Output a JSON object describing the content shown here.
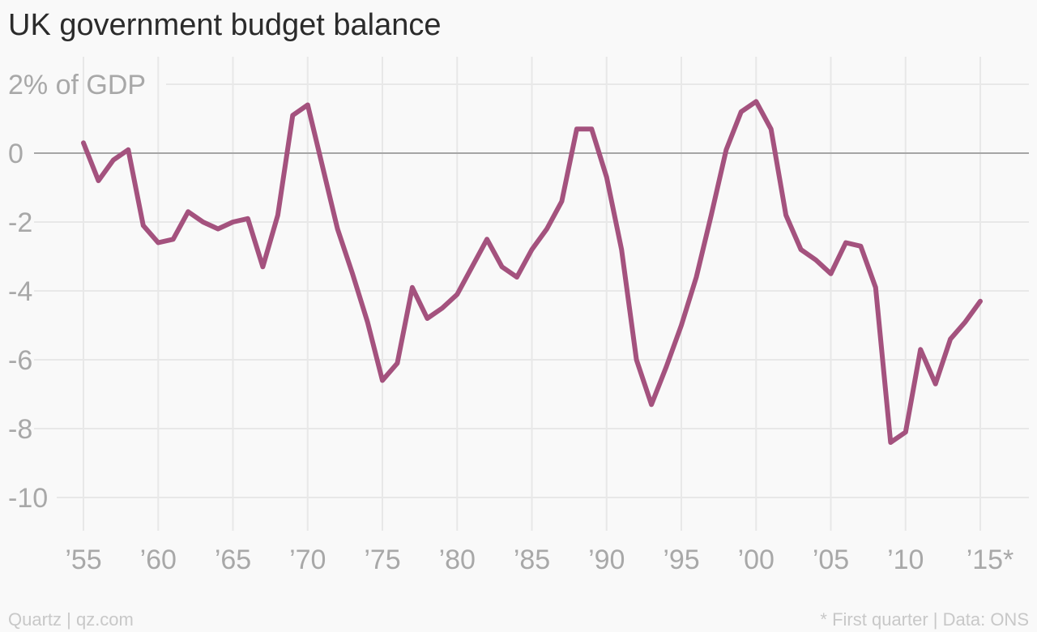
{
  "title": "UK government budget balance",
  "footer": {
    "source_left": "Quartz | qz.com",
    "note_right": "* First quarter | Data: ONS"
  },
  "colors": {
    "background": "#f9f9f9",
    "line": "#a4527e",
    "grid": "#e8e8e8",
    "zero_line": "#a6a6a6",
    "tick_text": "#a8a8a8"
  },
  "chart_data": {
    "type": "line",
    "title": "UK government budget balance",
    "ylabel": "% of GDP",
    "ylim": [
      -11,
      2.8
    ],
    "y_ticks": [
      2,
      0,
      -2,
      -4,
      -6,
      -8,
      -10
    ],
    "y_tick_labels": [
      "2% of GDP",
      "0",
      "-2",
      "-4",
      "-6",
      "-8",
      "-10"
    ],
    "x_ticks": [
      1955,
      1960,
      1965,
      1970,
      1975,
      1980,
      1985,
      1990,
      1995,
      2000,
      2005,
      2010,
      2015
    ],
    "x_tick_labels": [
      "’55",
      "’60",
      "’65",
      "’70",
      "’75",
      "’80",
      "’85",
      "’90",
      "’95",
      "’00",
      "’05",
      "’10",
      "’15*"
    ],
    "grid": true,
    "series": [
      {
        "x": [
          1955,
          1956,
          1957,
          1958,
          1959,
          1960,
          1961,
          1962,
          1963,
          1964,
          1965,
          1966,
          1967,
          1968,
          1969,
          1970,
          1971,
          1972,
          1973,
          1974,
          1975,
          1976,
          1977,
          1978,
          1979,
          1980,
          1981,
          1982,
          1983,
          1984,
          1985,
          1986,
          1987,
          1988,
          1989,
          1990,
          1991,
          1992,
          1993,
          1994,
          1995,
          1996,
          1997,
          1998,
          1999,
          2000,
          2001,
          2002,
          2003,
          2004,
          2005,
          2006,
          2007,
          2008,
          2009,
          2010,
          2011,
          2012,
          2013,
          2014,
          2015
        ],
        "values": [
          0.3,
          -0.8,
          -0.2,
          0.1,
          -2.1,
          -2.6,
          -2.5,
          -1.7,
          -2.0,
          -2.2,
          -2.0,
          -1.9,
          -3.3,
          -1.8,
          1.1,
          1.4,
          -0.4,
          -2.2,
          -3.5,
          -4.9,
          -6.6,
          -6.1,
          -3.9,
          -4.8,
          -4.5,
          -4.1,
          -3.3,
          -2.5,
          -3.3,
          -3.6,
          -2.8,
          -2.2,
          -1.4,
          0.7,
          0.7,
          -0.7,
          -2.8,
          -6.0,
          -7.3,
          -6.2,
          -5.0,
          -3.6,
          -1.8,
          0.1,
          1.2,
          1.5,
          0.7,
          -1.8,
          -2.8,
          -3.1,
          -3.5,
          -2.6,
          -2.7,
          -3.9,
          -8.4,
          -8.1,
          -5.7,
          -6.7,
          -5.4,
          -4.9,
          -4.3
        ]
      }
    ]
  }
}
